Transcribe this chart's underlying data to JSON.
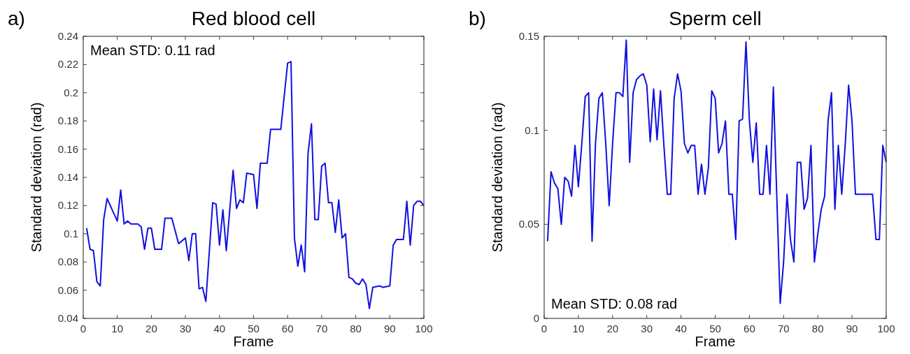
{
  "chart_data": [
    {
      "type": "line",
      "title": "Red blood cell",
      "xlabel": "Frame",
      "ylabel": "Standard deviation (rad)",
      "annotations": [
        "a)",
        "Mean STD: 0.11 rad"
      ],
      "xlim": [
        0,
        100
      ],
      "xticks": [
        0,
        10,
        20,
        30,
        40,
        50,
        60,
        70,
        80,
        90,
        100
      ],
      "ylim": [
        0.04,
        0.24
      ],
      "yticks": [
        0.04,
        0.06,
        0.08,
        0.1,
        0.12,
        0.14,
        0.16,
        0.18,
        0.2,
        0.22,
        0.24
      ],
      "series": [
        {
          "color": "#1010e0",
          "x": [
            1,
            2,
            3,
            4,
            5,
            6,
            7,
            10,
            11,
            12,
            13,
            14,
            16,
            17,
            18,
            19,
            20,
            21,
            23,
            24,
            26,
            28,
            30,
            31,
            32,
            33,
            34,
            35,
            36,
            38,
            39,
            40,
            41,
            42,
            44,
            45,
            46,
            47,
            48,
            50,
            51,
            52,
            54,
            55,
            57,
            58,
            60,
            61,
            62,
            63,
            64,
            65,
            66,
            67,
            68,
            69,
            70,
            71,
            72,
            73,
            74,
            75,
            76,
            77,
            78,
            79,
            80,
            81,
            82,
            83,
            84,
            85,
            87,
            88,
            90,
            91,
            92,
            94,
            95,
            96,
            97,
            98,
            99,
            100
          ],
          "values": [
            0.104,
            0.089,
            0.088,
            0.066,
            0.063,
            0.11,
            0.125,
            0.109,
            0.131,
            0.107,
            0.109,
            0.107,
            0.107,
            0.105,
            0.089,
            0.104,
            0.104,
            0.089,
            0.089,
            0.111,
            0.111,
            0.093,
            0.097,
            0.081,
            0.1,
            0.1,
            0.061,
            0.062,
            0.052,
            0.122,
            0.121,
            0.092,
            0.117,
            0.088,
            0.145,
            0.118,
            0.124,
            0.122,
            0.143,
            0.142,
            0.118,
            0.15,
            0.15,
            0.174,
            0.174,
            0.174,
            0.221,
            0.222,
            0.097,
            0.077,
            0.092,
            0.073,
            0.157,
            0.178,
            0.11,
            0.11,
            0.148,
            0.15,
            0.122,
            0.122,
            0.101,
            0.124,
            0.097,
            0.1,
            0.069,
            0.068,
            0.065,
            0.064,
            0.068,
            0.064,
            0.047,
            0.062,
            0.063,
            0.062,
            0.063,
            0.092,
            0.096,
            0.096,
            0.123,
            0.092,
            0.12,
            0.123,
            0.123,
            0.12
          ]
        }
      ]
    },
    {
      "type": "line",
      "title": "Sperm cell",
      "xlabel": "Frame",
      "ylabel": "Standard deviation (rad)",
      "annotations": [
        "b)",
        "Mean STD: 0.08 rad"
      ],
      "xlim": [
        0,
        100
      ],
      "xticks": [
        0,
        10,
        20,
        30,
        40,
        50,
        60,
        70,
        80,
        90,
        100
      ],
      "ylim": [
        0,
        0.15
      ],
      "yticks": [
        0,
        0.05,
        0.1,
        0.15
      ],
      "series": [
        {
          "color": "#1010e0",
          "x": [
            1,
            2,
            3,
            4,
            5,
            6,
            7,
            8,
            9,
            10,
            11,
            12,
            13,
            14,
            15,
            16,
            17,
            18,
            19,
            20,
            21,
            22,
            23,
            24,
            25,
            26,
            27,
            28,
            29,
            30,
            31,
            32,
            33,
            34,
            35,
            36,
            37,
            38,
            39,
            40,
            41,
            42,
            43,
            44,
            45,
            46,
            47,
            48,
            49,
            50,
            51,
            52,
            53,
            54,
            55,
            56,
            57,
            58,
            59,
            60,
            61,
            62,
            63,
            64,
            65,
            66,
            67,
            68,
            69,
            70,
            71,
            72,
            73,
            74,
            75,
            76,
            77,
            78,
            79,
            80,
            81,
            82,
            83,
            84,
            85,
            86,
            87,
            88,
            89,
            90,
            91,
            92,
            93,
            94,
            95,
            96,
            97,
            98,
            99,
            100
          ],
          "values": [
            0.041,
            0.078,
            0.072,
            0.069,
            0.05,
            0.075,
            0.073,
            0.065,
            0.092,
            0.07,
            0.093,
            0.118,
            0.12,
            0.041,
            0.093,
            0.117,
            0.12,
            0.093,
            0.06,
            0.093,
            0.12,
            0.12,
            0.118,
            0.148,
            0.083,
            0.12,
            0.127,
            0.129,
            0.13,
            0.124,
            0.094,
            0.122,
            0.095,
            0.121,
            0.092,
            0.066,
            0.066,
            0.117,
            0.13,
            0.121,
            0.093,
            0.088,
            0.092,
            0.092,
            0.066,
            0.082,
            0.066,
            0.08,
            0.121,
            0.117,
            0.088,
            0.093,
            0.105,
            0.066,
            0.066,
            0.042,
            0.105,
            0.106,
            0.147,
            0.105,
            0.083,
            0.104,
            0.066,
            0.066,
            0.092,
            0.066,
            0.123,
            0.065,
            0.008,
            0.03,
            0.066,
            0.042,
            0.03,
            0.083,
            0.083,
            0.058,
            0.064,
            0.092,
            0.03,
            0.045,
            0.058,
            0.065,
            0.105,
            0.12,
            0.058,
            0.092,
            0.066,
            0.092,
            0.124,
            0.105,
            0.066,
            0.066,
            0.066,
            0.066,
            0.066,
            0.066,
            0.042,
            0.042,
            0.092,
            0.083
          ]
        }
      ]
    }
  ]
}
